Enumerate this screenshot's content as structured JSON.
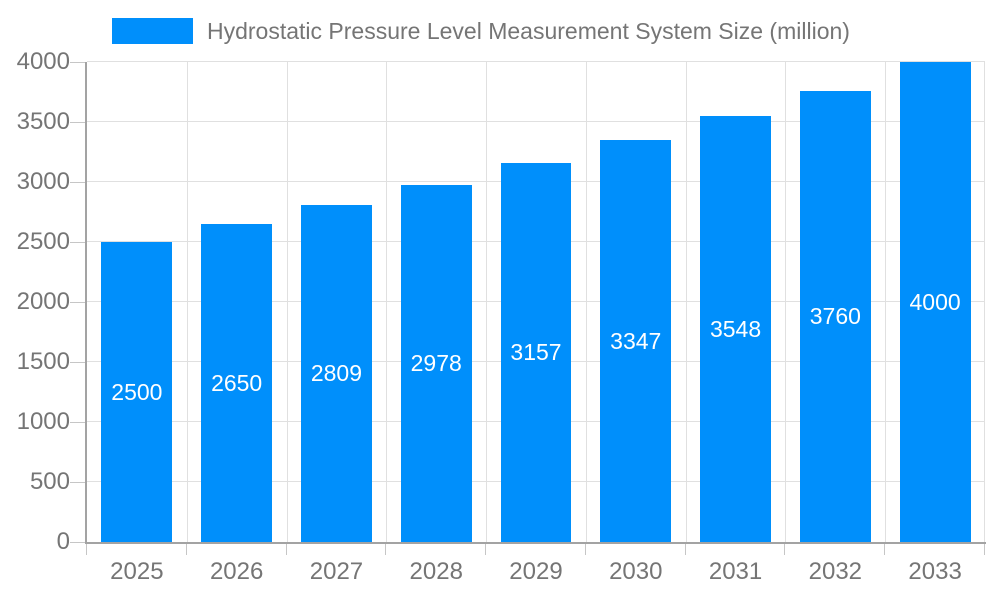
{
  "chart_data": {
    "type": "bar",
    "title": "Hydrostatic Pressure Level Measurement System Size (million)",
    "categories": [
      "2025",
      "2026",
      "2027",
      "2028",
      "2029",
      "2030",
      "2031",
      "2032",
      "2033"
    ],
    "values": [
      2500,
      2650,
      2809,
      2978,
      3157,
      3347,
      3548,
      3760,
      4000
    ],
    "xlabel": "",
    "ylabel": "",
    "ylim": [
      0,
      4000
    ],
    "yticks": [
      0,
      500,
      1000,
      1500,
      2000,
      2500,
      3000,
      3500,
      4000
    ],
    "grid": true,
    "legend_position": "top-left",
    "value_labels": "inside-center",
    "colors": {
      "bar": "#008FFB",
      "bar_label": "#ffffff",
      "grid": "#e0e0e0",
      "axis": "#a3a3a3",
      "tick": "#c6c6c6",
      "text": "#757575",
      "background": "#ffffff"
    }
  }
}
